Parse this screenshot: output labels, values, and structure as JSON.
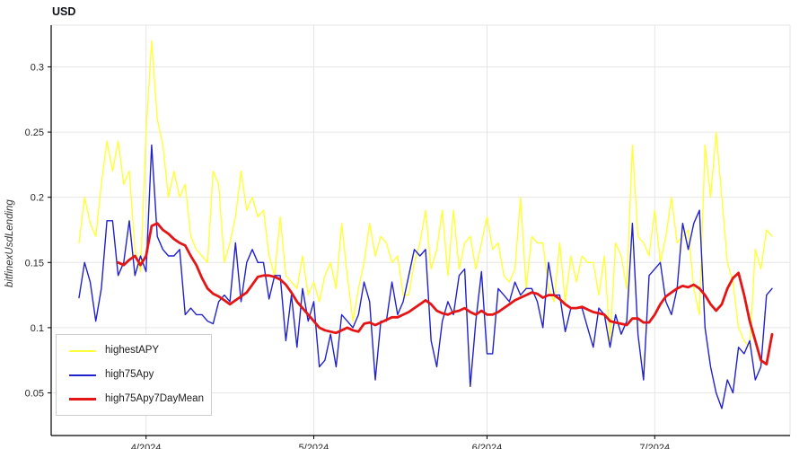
{
  "page": {
    "background": "#ffffff"
  },
  "chart_data": {
    "type": "line",
    "title": "USD",
    "ylabel": "bitfinexUsdLending",
    "xlabel": "",
    "ylim": [
      0.0173,
      0.332
    ],
    "grid": true,
    "legend_position": "bottom-left",
    "y_ticks": [
      0.05,
      0.1,
      0.15,
      0.2,
      0.25,
      0.3
    ],
    "y_tick_labels": [
      "0.05",
      "0.1",
      "0.15",
      "0.2",
      "0.25",
      "0.3"
    ],
    "x_tick_indices": [
      12,
      42,
      73,
      103
    ],
    "x_tick_labels": [
      "4/2024",
      "5/2024",
      "6/2024",
      "7/2024"
    ],
    "colors": {
      "grid": "#e6e6e6",
      "axis": "#000000",
      "tick_text": "#262626"
    },
    "series": [
      {
        "name": "highestAPY",
        "color": "#ffff38",
        "width": 1.4,
        "values": [
          0.165,
          0.2,
          0.18,
          0.17,
          0.21,
          0.243,
          0.22,
          0.243,
          0.21,
          0.22,
          0.16,
          0.143,
          0.25,
          0.32,
          0.26,
          0.24,
          0.2,
          0.22,
          0.2,
          0.21,
          0.17,
          0.16,
          0.155,
          0.15,
          0.22,
          0.21,
          0.15,
          0.165,
          0.185,
          0.22,
          0.19,
          0.2,
          0.185,
          0.19,
          0.155,
          0.14,
          0.185,
          0.14,
          0.135,
          0.13,
          0.155,
          0.125,
          0.135,
          0.12,
          0.14,
          0.15,
          0.13,
          0.18,
          0.14,
          0.105,
          0.13,
          0.15,
          0.18,
          0.155,
          0.17,
          0.165,
          0.15,
          0.155,
          0.125,
          0.125,
          0.15,
          0.165,
          0.19,
          0.145,
          0.16,
          0.19,
          0.14,
          0.19,
          0.145,
          0.165,
          0.17,
          0.145,
          0.165,
          0.185,
          0.16,
          0.165,
          0.14,
          0.135,
          0.145,
          0.2,
          0.13,
          0.17,
          0.165,
          0.165,
          0.13,
          0.12,
          0.165,
          0.12,
          0.155,
          0.135,
          0.155,
          0.15,
          0.15,
          0.125,
          0.155,
          0.09,
          0.165,
          0.155,
          0.13,
          0.24,
          0.17,
          0.165,
          0.155,
          0.19,
          0.15,
          0.17,
          0.2,
          0.165,
          0.17,
          0.175,
          0.13,
          0.11,
          0.24,
          0.2,
          0.25,
          0.2,
          0.15,
          0.135,
          0.1,
          0.09,
          0.085,
          0.16,
          0.145,
          0.175,
          0.17
        ]
      },
      {
        "name": "high75Apy",
        "color": "#2121cd",
        "width": 1.4,
        "values": [
          0.123,
          0.15,
          0.135,
          0.105,
          0.13,
          0.182,
          0.182,
          0.14,
          0.15,
          0.182,
          0.14,
          0.155,
          0.143,
          0.24,
          0.17,
          0.16,
          0.155,
          0.155,
          0.16,
          0.11,
          0.115,
          0.11,
          0.11,
          0.105,
          0.103,
          0.12,
          0.125,
          0.12,
          0.165,
          0.12,
          0.15,
          0.16,
          0.15,
          0.15,
          0.122,
          0.14,
          0.14,
          0.09,
          0.125,
          0.085,
          0.13,
          0.105,
          0.12,
          0.07,
          0.075,
          0.095,
          0.07,
          0.11,
          0.105,
          0.1,
          0.11,
          0.135,
          0.12,
          0.06,
          0.105,
          0.105,
          0.135,
          0.11,
          0.12,
          0.14,
          0.16,
          0.155,
          0.16,
          0.09,
          0.07,
          0.105,
          0.12,
          0.11,
          0.14,
          0.145,
          0.055,
          0.105,
          0.143,
          0.08,
          0.08,
          0.13,
          0.125,
          0.12,
          0.135,
          0.125,
          0.13,
          0.13,
          0.12,
          0.1,
          0.15,
          0.125,
          0.125,
          0.097,
          0.115,
          0.115,
          0.115,
          0.1,
          0.085,
          0.115,
          0.11,
          0.085,
          0.11,
          0.095,
          0.105,
          0.18,
          0.095,
          0.06,
          0.14,
          0.145,
          0.15,
          0.12,
          0.11,
          0.13,
          0.18,
          0.16,
          0.18,
          0.19,
          0.1,
          0.07,
          0.05,
          0.038,
          0.06,
          0.05,
          0.085,
          0.08,
          0.09,
          0.06,
          0.07,
          0.125,
          0.13
        ]
      },
      {
        "name": "high75Apy7DayMean",
        "color": "#e51515",
        "width": 2.8,
        "values": [
          null,
          null,
          null,
          null,
          null,
          null,
          null,
          0.15,
          0.148,
          0.152,
          0.155,
          0.148,
          0.155,
          0.178,
          0.18,
          0.175,
          0.172,
          0.168,
          0.165,
          0.163,
          0.155,
          0.148,
          0.138,
          0.13,
          0.126,
          0.124,
          0.121,
          0.118,
          0.121,
          0.124,
          0.127,
          0.133,
          0.139,
          0.14,
          0.14,
          0.139,
          0.137,
          0.133,
          0.127,
          0.12,
          0.115,
          0.11,
          0.105,
          0.1,
          0.098,
          0.097,
          0.096,
          0.098,
          0.1,
          0.098,
          0.097,
          0.103,
          0.104,
          0.102,
          0.104,
          0.106,
          0.108,
          0.108,
          0.11,
          0.112,
          0.115,
          0.118,
          0.121,
          0.118,
          0.113,
          0.111,
          0.11,
          0.112,
          0.113,
          0.115,
          0.112,
          0.11,
          0.113,
          0.11,
          0.11,
          0.112,
          0.115,
          0.118,
          0.121,
          0.123,
          0.125,
          0.127,
          0.126,
          0.123,
          0.125,
          0.125,
          0.122,
          0.118,
          0.115,
          0.115,
          0.116,
          0.114,
          0.112,
          0.111,
          0.11,
          0.105,
          0.104,
          0.103,
          0.102,
          0.107,
          0.107,
          0.104,
          0.104,
          0.11,
          0.118,
          0.124,
          0.127,
          0.13,
          0.132,
          0.131,
          0.133,
          0.13,
          0.125,
          0.118,
          0.113,
          0.118,
          0.13,
          0.138,
          0.142,
          0.125,
          0.105,
          0.09,
          0.075,
          0.072,
          0.095
        ]
      }
    ]
  },
  "legend": {
    "items": [
      {
        "label": "highestAPY",
        "color": "#ffff38",
        "line_width": 2
      },
      {
        "label": "high75Apy",
        "color": "#2121cd",
        "line_width": 2
      },
      {
        "label": "high75Apy7DayMean",
        "color": "#e51515",
        "line_width": 3
      }
    ]
  }
}
